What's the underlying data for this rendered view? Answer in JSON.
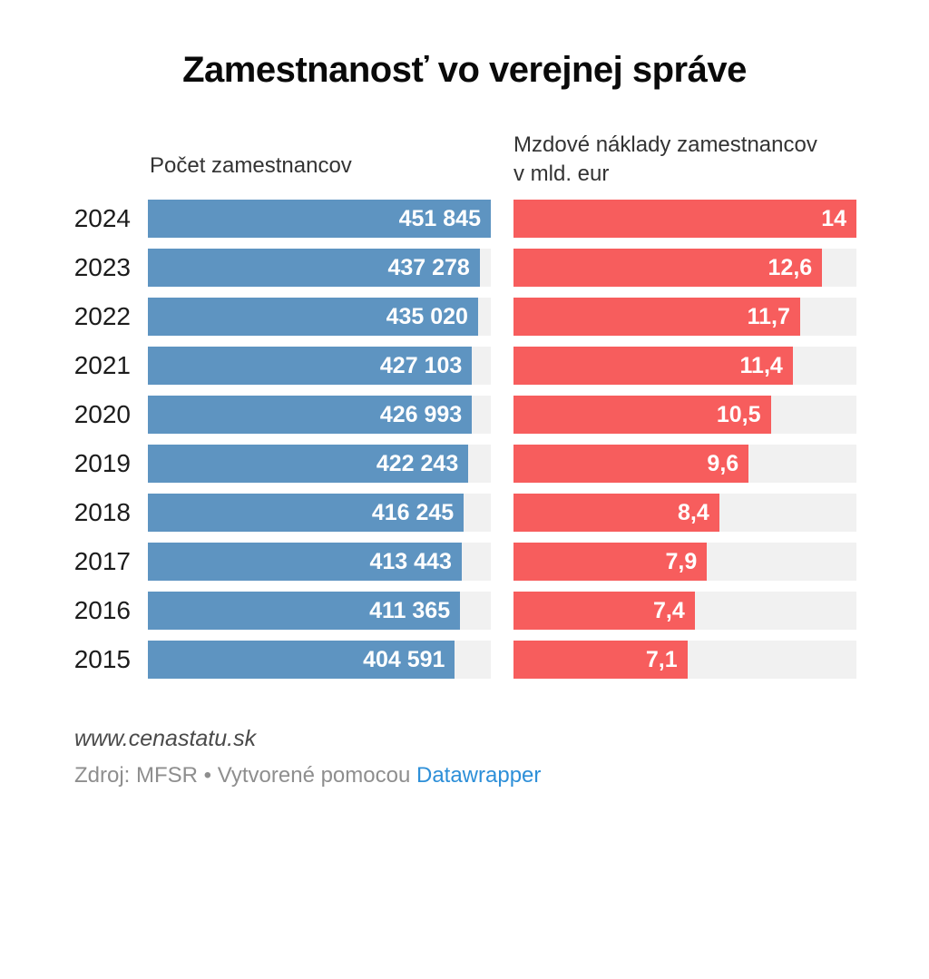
{
  "title": "Zamestnanosť vo verejnej správe",
  "colors": {
    "blue_bar": "#5e94c1",
    "red_bar": "#f75d5d",
    "track_gray": "#f1f1f1",
    "link_blue": "#2d8fd8"
  },
  "headers": {
    "col1": "Počet zamestnancov",
    "col2_line1": "Mzdové náklady zamestnancov",
    "col2_line2": "v mld. eur"
  },
  "chart_data": {
    "type": "bar",
    "orientation": "horizontal",
    "grid": false,
    "value_labels": "inside-end",
    "legend_position": "column-headers",
    "categories": [
      "2024",
      "2023",
      "2022",
      "2021",
      "2020",
      "2019",
      "2018",
      "2017",
      "2016",
      "2015"
    ],
    "series": [
      {
        "name": "Počet zamestnancov",
        "color": "#5e94c1",
        "axis_min": 0,
        "axis_max": 451845,
        "values": [
          451845,
          437278,
          435020,
          427103,
          426993,
          422243,
          416245,
          413443,
          411365,
          404591
        ],
        "labels": [
          "451 845",
          "437 278",
          "435 020",
          "427 103",
          "426 993",
          "422 243",
          "416 245",
          "413 443",
          "411 365",
          "404 591"
        ]
      },
      {
        "name": "Mzdové náklady zamestnancov v mld. eur",
        "color": "#f75d5d",
        "axis_min": 0,
        "axis_max": 14,
        "values": [
          14,
          12.6,
          11.7,
          11.4,
          10.5,
          9.6,
          8.4,
          7.9,
          7.4,
          7.1
        ],
        "labels": [
          "14",
          "12,6",
          "11,7",
          "11,4",
          "10,5",
          "9,6",
          "8,4",
          "7,9",
          "7,4",
          "7,1"
        ]
      }
    ]
  },
  "footer": {
    "website": "www.cenastatu.sk",
    "source_text": "Zdroj: MFSR • Vytvorené pomocou",
    "source_link": "Datawrapper"
  }
}
